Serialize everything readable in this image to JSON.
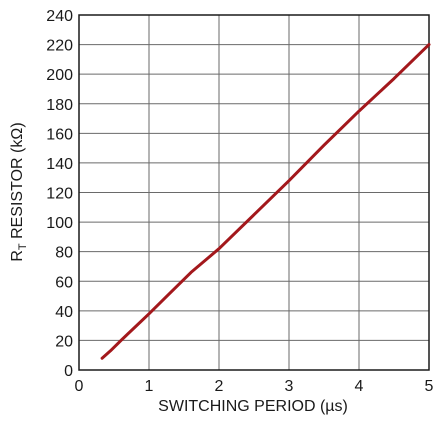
{
  "chart_data": {
    "type": "line",
    "xlabel": "SWITCHING PERIOD (µs)",
    "ylabel": {
      "main": "R",
      "sub": "T",
      "rest": " RESISTOR (kΩ)"
    },
    "xlim": [
      0,
      5
    ],
    "ylim": [
      0,
      240
    ],
    "x_ticks": [
      0,
      1,
      2,
      3,
      4,
      5
    ],
    "y_ticks": [
      0,
      20,
      40,
      60,
      80,
      100,
      120,
      140,
      160,
      180,
      200,
      220,
      240
    ],
    "x_tick_labels": [
      "0",
      "1",
      "2",
      "3",
      "4",
      "5"
    ],
    "y_tick_labels": [
      "0",
      "20",
      "40",
      "60",
      "80",
      "100",
      "120",
      "140",
      "160",
      "180",
      "200",
      "220",
      "240"
    ],
    "grid": true,
    "line_color": "#a3181c",
    "series": [
      {
        "x": [
          0.33,
          0.45,
          0.6,
          0.8,
          1.0,
          1.3,
          1.6,
          2.0,
          2.5,
          3.0,
          3.5,
          4.0,
          4.5,
          5.0
        ],
        "y": [
          8,
          13,
          20,
          29,
          38,
          52,
          66,
          82,
          105,
          128,
          152,
          175,
          197,
          220
        ]
      }
    ]
  }
}
